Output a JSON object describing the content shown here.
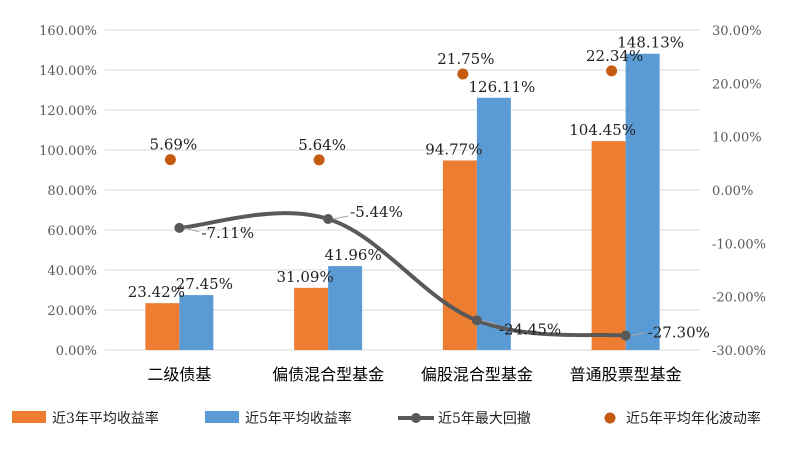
{
  "chart_data": {
    "type": "bar",
    "categories": [
      "二级债基",
      "偏债混合型基金",
      "偏股混合型基金",
      "普通股票型基金"
    ],
    "y_left": {
      "ticks": [
        "0.00%",
        "20.00%",
        "40.00%",
        "60.00%",
        "80.00%",
        "100.00%",
        "120.00%",
        "140.00%",
        "160.00%"
      ],
      "ylim": [
        0,
        160
      ]
    },
    "y_right": {
      "ticks": [
        "-30.00%",
        "-20.00%",
        "-10.00%",
        "0.00%",
        "10.00%",
        "20.00%",
        "30.00%"
      ],
      "ylim": [
        -30,
        30
      ]
    },
    "grid": true,
    "legend_position": "bottom",
    "series": [
      {
        "name": "近3年平均收益率",
        "type": "bar",
        "axis": "left",
        "color": "#ed7d31",
        "values": [
          23.42,
          31.09,
          94.77,
          104.45
        ],
        "labels": [
          "23.42%",
          "31.09%",
          "94.77%",
          "104.45%"
        ]
      },
      {
        "name": "近5年平均收益率",
        "type": "bar",
        "axis": "left",
        "color": "#5b9bd5",
        "values": [
          27.45,
          41.96,
          126.11,
          148.13
        ],
        "labels": [
          "27.45%",
          "41.96%",
          "126.11%",
          "148.13%"
        ]
      },
      {
        "name": "近5年最大回撤",
        "type": "line",
        "axis": "right",
        "color": "#595959",
        "values": [
          -7.11,
          -5.44,
          -24.45,
          -27.3
        ],
        "labels": [
          "-7.11%",
          "-5.44%",
          "-24.45%",
          "-27.30%"
        ]
      },
      {
        "name": "近5年平均年化波动率",
        "type": "scatter",
        "axis": "right",
        "color": "#c55a11",
        "values": [
          5.69,
          5.64,
          21.75,
          22.34
        ],
        "labels": [
          "5.69%",
          "5.64%",
          "21.75%",
          "22.34%"
        ]
      }
    ]
  }
}
